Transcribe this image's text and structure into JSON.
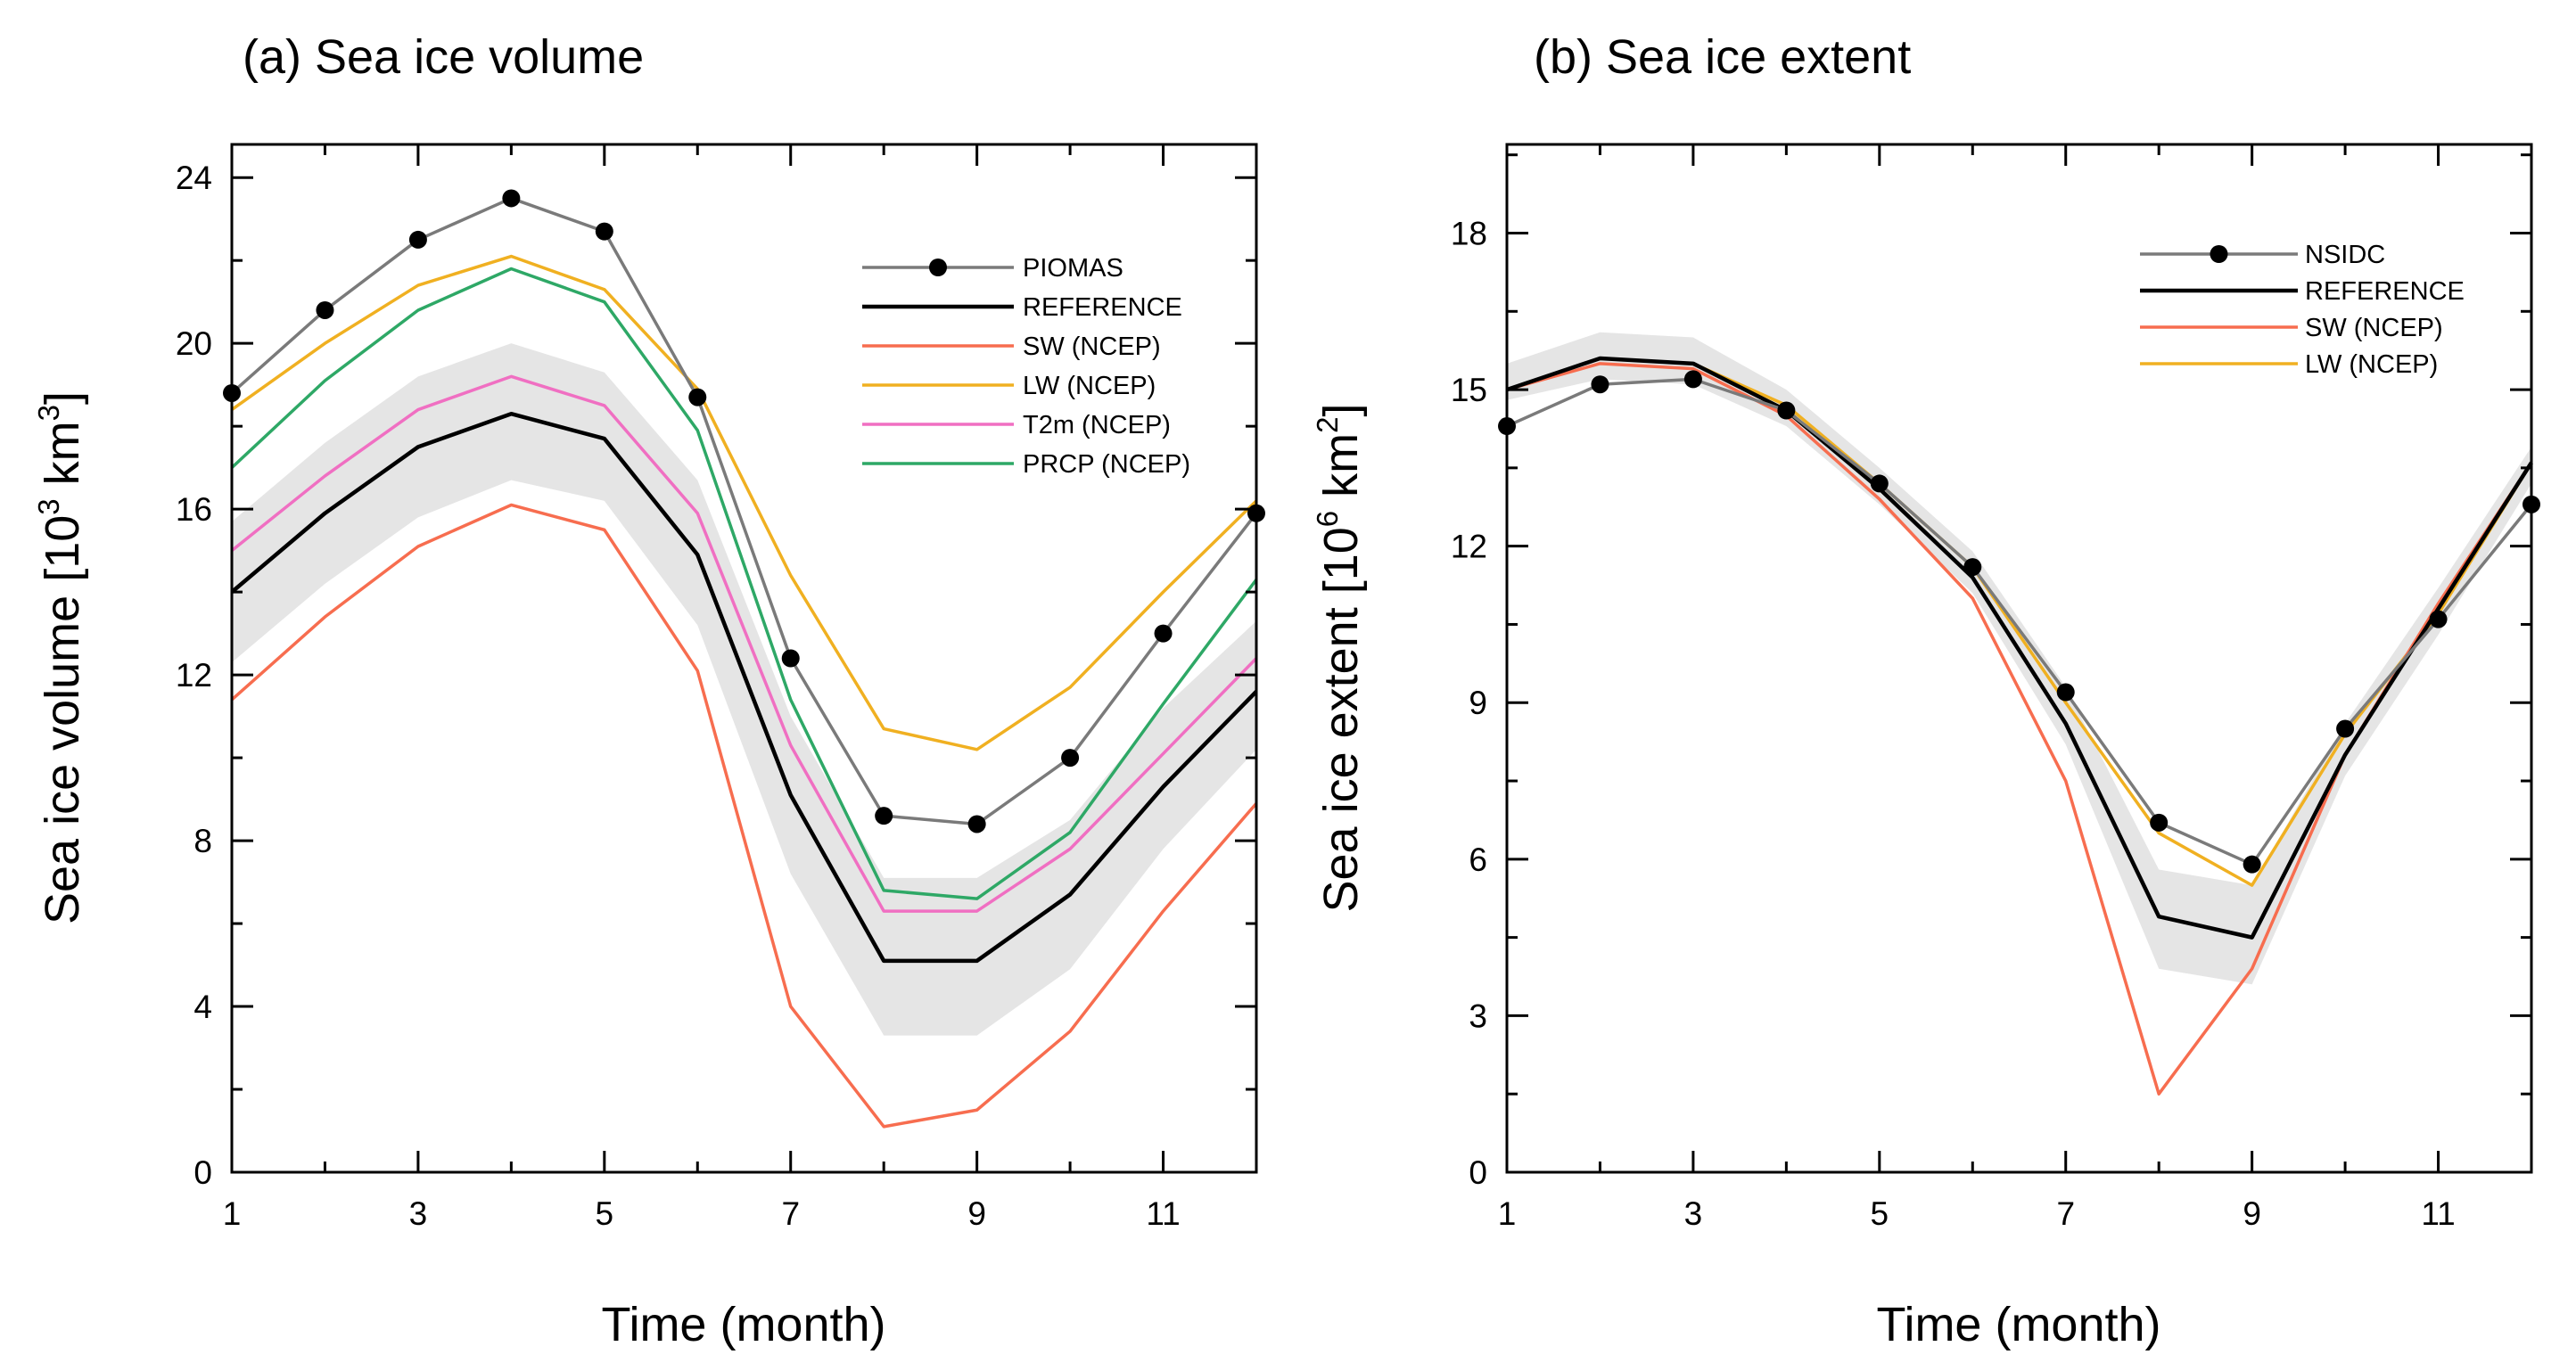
{
  "chart_data": [
    {
      "type": "line",
      "title": "(a) Sea ice volume",
      "xlabel": "Time (month)",
      "ylabel_main": "Sea ice volume [10",
      "ylabel_sup1": "3",
      "ylabel_mid": " km",
      "ylabel_sup2": "3",
      "ylabel_end": "]",
      "xlim": [
        1,
        12
      ],
      "ylim": [
        0,
        24.8
      ],
      "x_ticks": [
        1,
        3,
        5,
        7,
        9,
        11
      ],
      "x_tick_labels": [
        "1",
        "3",
        "5",
        "7",
        "9",
        "11"
      ],
      "y_ticks": [
        0,
        4,
        8,
        12,
        16,
        20,
        24
      ],
      "y_tick_labels": [
        "0",
        "4",
        "8",
        "12",
        "16",
        "20",
        "24"
      ],
      "x": [
        1,
        2,
        3,
        4,
        5,
        6,
        7,
        8,
        9,
        10,
        11,
        12
      ],
      "band": {
        "lower": [
          12.3,
          14.2,
          15.8,
          16.7,
          16.2,
          13.2,
          7.2,
          3.3,
          3.3,
          4.9,
          7.8,
          10.2
        ],
        "upper": [
          15.7,
          17.6,
          19.2,
          20.0,
          19.3,
          16.7,
          11.0,
          7.1,
          7.1,
          8.5,
          11.2,
          13.3
        ],
        "color": "#e5e5e5"
      },
      "series": [
        {
          "name": "PIOMAS",
          "color": "#7a7a7a",
          "markers": true,
          "values": [
            18.8,
            20.8,
            22.5,
            23.5,
            22.7,
            18.7,
            12.4,
            8.6,
            8.4,
            10.0,
            13.0,
            15.9
          ]
        },
        {
          "name": "REFERENCE",
          "color": "#000000",
          "markers": false,
          "values": [
            14.0,
            15.9,
            17.5,
            18.3,
            17.7,
            14.9,
            9.1,
            5.1,
            5.1,
            6.7,
            9.3,
            11.6
          ]
        },
        {
          "name": "SW (NCEP)",
          "color": "#f76d4f",
          "markers": false,
          "values": [
            11.4,
            13.4,
            15.1,
            16.1,
            15.5,
            12.1,
            4.0,
            1.1,
            1.5,
            3.4,
            6.3,
            8.9
          ]
        },
        {
          "name": "LW (NCEP)",
          "color": "#f0b021",
          "markers": false,
          "values": [
            18.4,
            20.0,
            21.4,
            22.1,
            21.3,
            18.9,
            14.4,
            10.7,
            10.2,
            11.7,
            14.0,
            16.2
          ]
        },
        {
          "name": "T2m (NCEP)",
          "color": "#f06fc2",
          "markers": false,
          "values": [
            15.0,
            16.8,
            18.4,
            19.2,
            18.5,
            15.9,
            10.3,
            6.3,
            6.3,
            7.8,
            10.1,
            12.4
          ]
        },
        {
          "name": "PRCP (NCEP)",
          "color": "#2ea866",
          "markers": false,
          "values": [
            17.0,
            19.1,
            20.8,
            21.8,
            21.0,
            17.9,
            11.4,
            6.8,
            6.6,
            8.2,
            11.3,
            14.3
          ]
        }
      ],
      "legend_position": "top-right"
    },
    {
      "type": "line",
      "title": "(b) Sea ice extent",
      "xlabel": "Time (month)",
      "ylabel_main": "Sea ice extent [10",
      "ylabel_sup1": "6",
      "ylabel_mid": " km",
      "ylabel_sup2": "2",
      "ylabel_end": "]",
      "xlim": [
        1,
        12
      ],
      "ylim": [
        0,
        19.7
      ],
      "x_ticks": [
        1,
        3,
        5,
        7,
        9,
        11
      ],
      "x_tick_labels": [
        "1",
        "3",
        "5",
        "7",
        "9",
        "11"
      ],
      "y_ticks": [
        0,
        3,
        6,
        9,
        12,
        15,
        18
      ],
      "y_tick_labels": [
        "0",
        "3",
        "6",
        "9",
        "12",
        "15",
        "18"
      ],
      "x": [
        1,
        2,
        3,
        4,
        5,
        6,
        7,
        8,
        9,
        10,
        11,
        12
      ],
      "band": {
        "lower": [
          14.8,
          15.2,
          15.1,
          14.3,
          12.8,
          11.1,
          8.2,
          3.9,
          3.6,
          7.6,
          10.3,
          13.2
        ],
        "upper": [
          15.5,
          16.1,
          16.0,
          15.0,
          13.5,
          11.9,
          9.3,
          5.8,
          5.5,
          8.6,
          11.2,
          13.9
        ],
        "color": "#e5e5e5"
      },
      "series": [
        {
          "name": "NSIDC",
          "color": "#7a7a7a",
          "markers": true,
          "values": [
            14.3,
            15.1,
            15.2,
            14.6,
            13.2,
            11.6,
            9.2,
            6.7,
            5.9,
            8.5,
            10.6,
            12.8
          ]
        },
        {
          "name": "REFERENCE",
          "color": "#000000",
          "markers": false,
          "values": [
            15.0,
            15.6,
            15.5,
            14.6,
            13.1,
            11.4,
            8.6,
            4.9,
            4.5,
            8.0,
            10.8,
            13.6
          ]
        },
        {
          "name": "SW (NCEP)",
          "color": "#f76d4f",
          "markers": false,
          "values": [
            15.0,
            15.5,
            15.4,
            14.5,
            12.9,
            11.0,
            7.5,
            1.5,
            3.9,
            8.0,
            10.9,
            13.6
          ]
        },
        {
          "name": "LW (NCEP)",
          "color": "#f0b021",
          "markers": false,
          "values": [
            15.0,
            15.6,
            15.5,
            14.7,
            13.2,
            11.6,
            9.0,
            6.5,
            5.5,
            8.4,
            10.7,
            13.6
          ]
        }
      ],
      "legend_position": "top-right"
    }
  ]
}
